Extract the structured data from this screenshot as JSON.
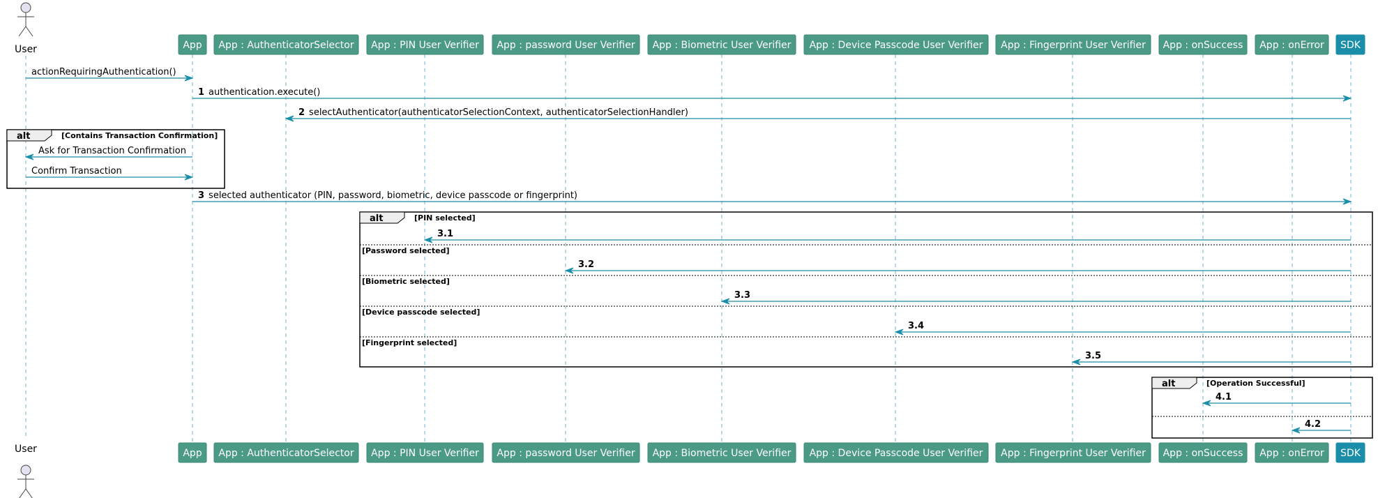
{
  "colors": {
    "participant_fill": "#4a9a86",
    "participant_border": "#3c8a76",
    "sdk_fill": "#1a8ea9",
    "arrow": "#1a8ea9",
    "lifeline": "#6fb1c9",
    "actor_fill": "#e2e2f0"
  },
  "participants": [
    {
      "id": "user",
      "label": "User",
      "kind": "actor"
    },
    {
      "id": "app",
      "label": "App",
      "kind": "box"
    },
    {
      "id": "selector",
      "label": "App : AuthenticatorSelector",
      "kind": "box"
    },
    {
      "id": "pin",
      "label": "App : PIN User Verifier",
      "kind": "box"
    },
    {
      "id": "password",
      "label": "App : password User Verifier",
      "kind": "box"
    },
    {
      "id": "biometric",
      "label": "App : Biometric User Verifier",
      "kind": "box"
    },
    {
      "id": "passcode",
      "label": "App : Device Passcode User Verifier",
      "kind": "box"
    },
    {
      "id": "fingerprint",
      "label": "App : Fingerprint User Verifier",
      "kind": "box"
    },
    {
      "id": "onsuccess",
      "label": "App : onSuccess",
      "kind": "box"
    },
    {
      "id": "onerror",
      "label": "App : onError",
      "kind": "box"
    },
    {
      "id": "sdk",
      "label": "SDK",
      "kind": "box",
      "highlight": true
    }
  ],
  "messages": [
    {
      "from": "user",
      "to": "app",
      "number": "",
      "text": "actionRequiringAuthentication()"
    },
    {
      "from": "app",
      "to": "sdk",
      "number": "1",
      "text": "authentication.execute()"
    },
    {
      "from": "sdk",
      "to": "selector",
      "number": "2",
      "text": "selectAuthenticator(authenticatorSelectionContext, authenticatorSelectionHandler)"
    },
    {
      "from": "app",
      "to": "user",
      "number": "",
      "text": "Ask for Transaction Confirmation"
    },
    {
      "from": "user",
      "to": "app",
      "number": "",
      "text": "Confirm Transaction"
    },
    {
      "from": "app",
      "to": "sdk",
      "number": "3",
      "text": "selected authenticator (PIN, password, biometric, device passcode or fingerprint)"
    },
    {
      "from": "sdk",
      "to": "pin",
      "number": "3.1",
      "text": ""
    },
    {
      "from": "sdk",
      "to": "password",
      "number": "3.2",
      "text": ""
    },
    {
      "from": "sdk",
      "to": "biometric",
      "number": "3.3",
      "text": ""
    },
    {
      "from": "sdk",
      "to": "passcode",
      "number": "3.4",
      "text": ""
    },
    {
      "from": "sdk",
      "to": "fingerprint",
      "number": "3.5",
      "text": ""
    },
    {
      "from": "sdk",
      "to": "onsuccess",
      "number": "4.1",
      "text": ""
    },
    {
      "from": "sdk",
      "to": "onerror",
      "number": "4.2",
      "text": ""
    }
  ],
  "fragments": [
    {
      "keyword": "alt",
      "sections": [
        "Contains Transaction Confirmation"
      ]
    },
    {
      "keyword": "alt",
      "sections": [
        "PIN selected",
        "Password selected",
        "Biometric selected",
        "Device passcode selected",
        "Fingerprint selected"
      ]
    },
    {
      "keyword": "alt",
      "sections": [
        "Operation Successful",
        ""
      ]
    }
  ]
}
